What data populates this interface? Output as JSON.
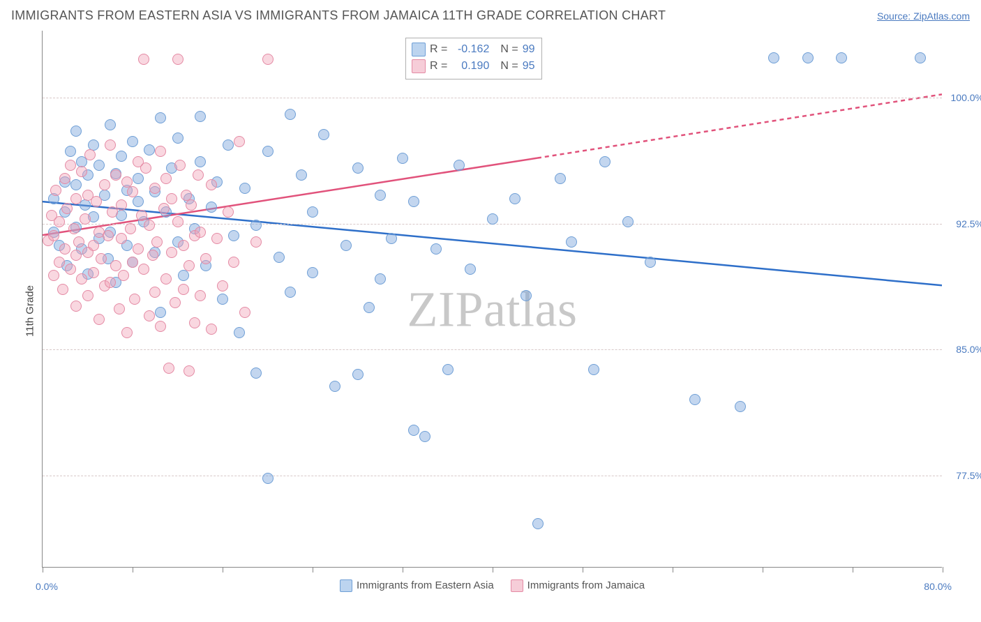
{
  "title": "IMMIGRANTS FROM EASTERN ASIA VS IMMIGRANTS FROM JAMAICA 11TH GRADE CORRELATION CHART",
  "source_label": "Source: ZipAtlas.com",
  "ylabel": "11th Grade",
  "watermark": "ZIPatlas",
  "xlim": [
    0,
    80
  ],
  "ylim": [
    72,
    104
  ],
  "xtick_label_min": "0.0%",
  "xtick_label_max": "80.0%",
  "xtick_positions": [
    0,
    8,
    16,
    24,
    32,
    40,
    48,
    56,
    64,
    72,
    80
  ],
  "yticks": [
    {
      "v": 100.0,
      "label": "100.0%"
    },
    {
      "v": 92.5,
      "label": "92.5%"
    },
    {
      "v": 85.0,
      "label": "85.0%"
    },
    {
      "v": 77.5,
      "label": "77.5%"
    }
  ],
  "series": [
    {
      "id": "eastern_asia",
      "label": "Immigrants from Eastern Asia",
      "color_fill": "rgba(122,165,220,0.45)",
      "color_stroke": "#6f9fd6",
      "swatch_fill": "#bcd4ef",
      "swatch_border": "#6f9fd6",
      "line_color": "#2e6fc9",
      "marker_radius": 8,
      "stats": {
        "R": "-0.162",
        "N": "99"
      },
      "trend": {
        "x0": 0,
        "y0": 93.8,
        "x1": 80,
        "y1": 88.8,
        "dash": false
      },
      "points": [
        [
          1,
          92
        ],
        [
          1,
          94
        ],
        [
          1.5,
          91.2
        ],
        [
          2,
          95
        ],
        [
          2,
          93.2
        ],
        [
          2.5,
          96.8
        ],
        [
          2.2,
          90
        ],
        [
          3,
          94.8
        ],
        [
          3,
          92.3
        ],
        [
          3,
          98
        ],
        [
          3.5,
          91
        ],
        [
          3.5,
          96.2
        ],
        [
          3.8,
          93.6
        ],
        [
          4,
          95.4
        ],
        [
          4,
          89.5
        ],
        [
          4.5,
          97.2
        ],
        [
          4.5,
          92.9
        ],
        [
          5,
          96
        ],
        [
          5,
          91.6
        ],
        [
          5.5,
          94.2
        ],
        [
          5.8,
          90.4
        ],
        [
          6,
          98.4
        ],
        [
          6,
          92
        ],
        [
          6.5,
          95.5
        ],
        [
          6.5,
          89
        ],
        [
          7,
          93
        ],
        [
          7,
          96.5
        ],
        [
          7.5,
          91.2
        ],
        [
          7.5,
          94.5
        ],
        [
          8,
          97.4
        ],
        [
          8,
          90.2
        ],
        [
          8.5,
          93.8
        ],
        [
          8.5,
          95.2
        ],
        [
          9,
          92.6
        ],
        [
          9.5,
          96.9
        ],
        [
          10,
          94.4
        ],
        [
          10,
          90.8
        ],
        [
          10.5,
          98.8
        ],
        [
          10.5,
          87.2
        ],
        [
          11,
          93.2
        ],
        [
          11.5,
          95.8
        ],
        [
          12,
          91.4
        ],
        [
          12,
          97.6
        ],
        [
          12.5,
          89.4
        ],
        [
          13,
          94
        ],
        [
          13.5,
          92.2
        ],
        [
          14,
          96.2
        ],
        [
          14,
          98.9
        ],
        [
          14.5,
          90
        ],
        [
          15,
          93.5
        ],
        [
          15.5,
          95
        ],
        [
          16,
          88
        ],
        [
          16.5,
          97.2
        ],
        [
          17,
          91.8
        ],
        [
          17.5,
          86
        ],
        [
          18,
          94.6
        ],
        [
          19,
          92.4
        ],
        [
          19,
          83.6
        ],
        [
          20,
          96.8
        ],
        [
          20,
          77.3
        ],
        [
          21,
          90.5
        ],
        [
          22,
          99
        ],
        [
          22,
          88.4
        ],
        [
          23,
          95.4
        ],
        [
          24,
          89.6
        ],
        [
          24,
          93.2
        ],
        [
          25,
          97.8
        ],
        [
          26,
          82.8
        ],
        [
          27,
          91.2
        ],
        [
          28,
          83.5
        ],
        [
          28,
          95.8
        ],
        [
          29,
          87.5
        ],
        [
          30,
          94.2
        ],
        [
          30,
          89.2
        ],
        [
          31,
          91.6
        ],
        [
          32,
          96.4
        ],
        [
          33,
          80.2
        ],
        [
          33,
          93.8
        ],
        [
          34,
          79.8
        ],
        [
          35,
          91
        ],
        [
          36,
          83.8
        ],
        [
          37,
          96
        ],
        [
          38,
          89.8
        ],
        [
          40,
          92.8
        ],
        [
          42,
          94
        ],
        [
          43,
          88.2
        ],
        [
          44,
          74.6
        ],
        [
          46,
          95.2
        ],
        [
          47,
          91.4
        ],
        [
          49,
          83.8
        ],
        [
          50,
          96.2
        ],
        [
          52,
          92.6
        ],
        [
          54,
          90.2
        ],
        [
          58,
          82
        ],
        [
          62,
          81.6
        ],
        [
          65,
          102.4
        ],
        [
          68,
          102.4
        ],
        [
          71,
          102.4
        ],
        [
          78,
          102.4
        ]
      ]
    },
    {
      "id": "jamaica",
      "label": "Immigrants from Jamaica",
      "color_fill": "rgba(240,160,180,0.42)",
      "color_stroke": "#e48aa4",
      "swatch_fill": "#f6cdd8",
      "swatch_border": "#e48aa4",
      "line_color": "#e1527b",
      "marker_radius": 8,
      "stats": {
        "R": "0.190",
        "N": "95"
      },
      "trend_solid": {
        "x0": 0,
        "y0": 91.8,
        "x1": 44,
        "y1": 96.4
      },
      "trend_dash": {
        "x0": 44,
        "y0": 96.4,
        "x1": 80,
        "y1": 100.2
      },
      "points": [
        [
          0.5,
          91.5
        ],
        [
          0.8,
          93
        ],
        [
          1,
          89.4
        ],
        [
          1,
          91.8
        ],
        [
          1.2,
          94.5
        ],
        [
          1.5,
          90.2
        ],
        [
          1.5,
          92.6
        ],
        [
          1.8,
          88.6
        ],
        [
          2,
          95.2
        ],
        [
          2,
          91
        ],
        [
          2.2,
          93.4
        ],
        [
          2.5,
          89.8
        ],
        [
          2.5,
          96
        ],
        [
          2.8,
          92.2
        ],
        [
          3,
          90.6
        ],
        [
          3,
          94
        ],
        [
          3,
          87.6
        ],
        [
          3.2,
          91.4
        ],
        [
          3.5,
          95.6
        ],
        [
          3.5,
          89.2
        ],
        [
          3.8,
          92.8
        ],
        [
          4,
          90.8
        ],
        [
          4,
          94.2
        ],
        [
          4,
          88.2
        ],
        [
          4.2,
          96.6
        ],
        [
          4.5,
          91.2
        ],
        [
          4.5,
          89.6
        ],
        [
          4.8,
          93.8
        ],
        [
          5,
          92
        ],
        [
          5,
          86.8
        ],
        [
          5.2,
          90.4
        ],
        [
          5.5,
          94.8
        ],
        [
          5.5,
          88.8
        ],
        [
          5.8,
          91.8
        ],
        [
          6,
          97.2
        ],
        [
          6,
          89
        ],
        [
          6.2,
          93.2
        ],
        [
          6.5,
          90
        ],
        [
          6.5,
          95.4
        ],
        [
          6.8,
          87.4
        ],
        [
          7,
          91.6
        ],
        [
          7,
          93.6
        ],
        [
          7.2,
          89.4
        ],
        [
          7.5,
          95
        ],
        [
          7.5,
          86
        ],
        [
          7.8,
          92.2
        ],
        [
          8,
          90.2
        ],
        [
          8,
          94.4
        ],
        [
          8.2,
          88
        ],
        [
          8.5,
          96.2
        ],
        [
          8.5,
          91
        ],
        [
          8.8,
          93
        ],
        [
          9,
          89.8
        ],
        [
          9,
          102.3
        ],
        [
          9.2,
          95.8
        ],
        [
          9.5,
          87
        ],
        [
          9.5,
          92.4
        ],
        [
          9.8,
          90.6
        ],
        [
          10,
          94.6
        ],
        [
          10,
          88.4
        ],
        [
          10.2,
          91.4
        ],
        [
          10.5,
          96.8
        ],
        [
          10.5,
          86.4
        ],
        [
          10.8,
          93.4
        ],
        [
          11,
          89.2
        ],
        [
          11,
          95.2
        ],
        [
          11.2,
          83.9
        ],
        [
          11.5,
          90.8
        ],
        [
          11.5,
          94
        ],
        [
          11.8,
          87.8
        ],
        [
          12,
          92.6
        ],
        [
          12,
          102.3
        ],
        [
          12.2,
          96
        ],
        [
          12.5,
          88.6
        ],
        [
          12.5,
          91.2
        ],
        [
          12.8,
          94.2
        ],
        [
          13,
          83.7
        ],
        [
          13,
          90
        ],
        [
          13.2,
          93.6
        ],
        [
          13.5,
          86.6
        ],
        [
          13.5,
          91.8
        ],
        [
          13.8,
          95.4
        ],
        [
          14,
          88.2
        ],
        [
          14,
          92
        ],
        [
          14.5,
          90.4
        ],
        [
          15,
          94.8
        ],
        [
          15,
          86.2
        ],
        [
          15.5,
          91.6
        ],
        [
          16,
          88.8
        ],
        [
          16.5,
          93.2
        ],
        [
          17,
          90.2
        ],
        [
          17.5,
          97.4
        ],
        [
          18,
          87.2
        ],
        [
          19,
          91.4
        ],
        [
          20,
          102.3
        ]
      ]
    }
  ]
}
